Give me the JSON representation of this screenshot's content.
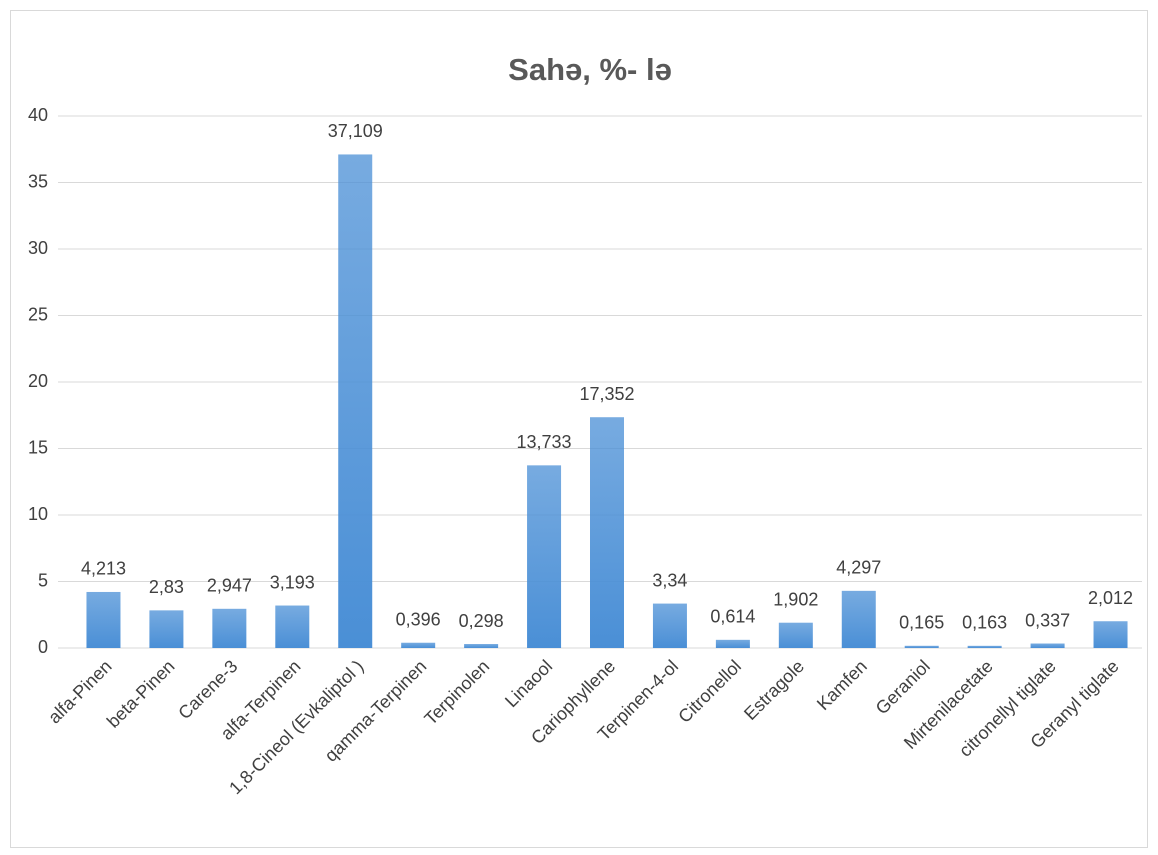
{
  "chart_data": {
    "type": "bar",
    "title": "Sahə, %- lə",
    "categories": [
      "alfa-Pinen",
      "beta-Pinen",
      "Carene-3",
      "alfa-Terpinen",
      "1,8-Cineol (Evkaliptol )",
      "qamma-Terpinen",
      "Terpinolen",
      "Linaool",
      "Cariophyllene",
      "Terpinen-4-ol",
      "Citronellol",
      "Estragole",
      "Kamfen",
      "Geraniol",
      "Mirtenilacetate",
      "citronellyl tiglate",
      "Geranyl tiglate"
    ],
    "values": [
      4.213,
      2.83,
      2.947,
      3.193,
      37.109,
      0.396,
      0.298,
      13.733,
      17.352,
      3.34,
      0.614,
      1.902,
      4.297,
      0.165,
      0.163,
      0.337,
      2.012
    ],
    "value_labels": [
      "4,213",
      "2,83",
      "2,947",
      "3,193",
      "37,109",
      "0,396",
      "0,298",
      "13,733",
      "17,352",
      "3,34",
      "0,614",
      "1,902",
      "4,297",
      "0,165",
      "0,163",
      "0,337",
      "2,012"
    ],
    "color": "#4a8fd6",
    "ylim": [
      0,
      40
    ],
    "yticks": [
      0,
      5,
      10,
      15,
      20,
      25,
      30,
      35,
      40
    ],
    "grid": true
  }
}
